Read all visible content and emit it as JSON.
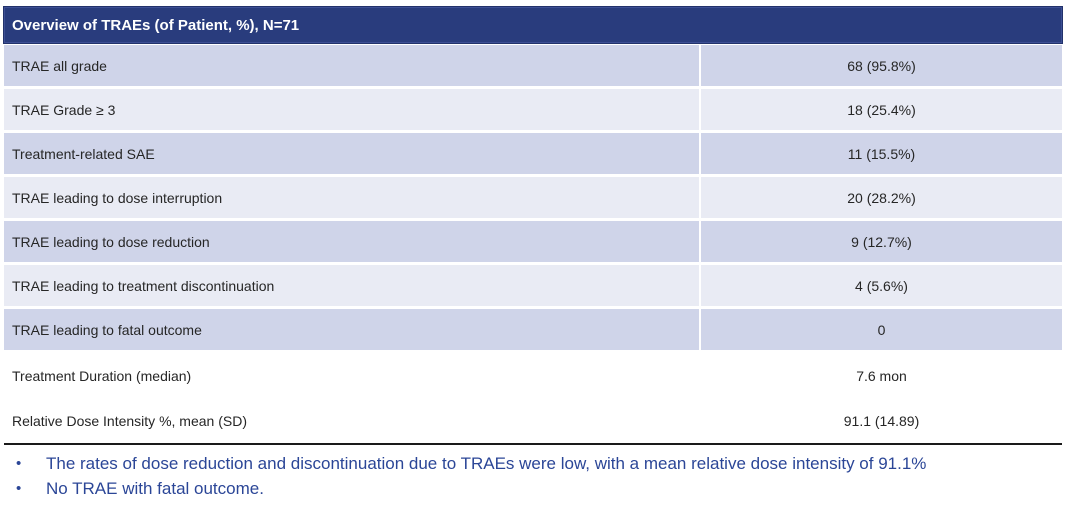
{
  "table": {
    "title": "Overview of TRAEs (of Patient, %), N=71",
    "rows": [
      {
        "label": "TRAE all grade",
        "value": "68 (95.8%)"
      },
      {
        "label": "TRAE Grade ≥ 3",
        "value": "18 (25.4%)"
      },
      {
        "label": "Treatment-related SAE",
        "value": "11 (15.5%)"
      },
      {
        "label": "TRAE leading to dose interruption",
        "value": "20 (28.2%)"
      },
      {
        "label": "TRAE leading to dose reduction",
        "value": "9 (12.7%)"
      },
      {
        "label": "TRAE leading to treatment discontinuation",
        "value": "4 (5.6%)"
      },
      {
        "label": "TRAE leading to fatal outcome",
        "value": "0"
      }
    ],
    "footer_rows": [
      {
        "label": "Treatment Duration (median)",
        "value": "7.6 mon"
      },
      {
        "label": "Relative Dose Intensity %, mean (SD)",
        "value": "91.1 (14.89)"
      }
    ]
  },
  "bullets": {
    "marker": "•",
    "items": [
      "The rates of dose reduction and discontinuation due to TRAEs were low, with a mean relative dose intensity of 91.1%",
      "No TRAE with fatal outcome."
    ]
  },
  "colors": {
    "header_bg": "#293C7D",
    "row_dark": "#CFD4E9",
    "row_light": "#E9EBF4",
    "body_text": "#262626",
    "bullet_text": "#2B4697",
    "rule": "#1A1A1A"
  }
}
